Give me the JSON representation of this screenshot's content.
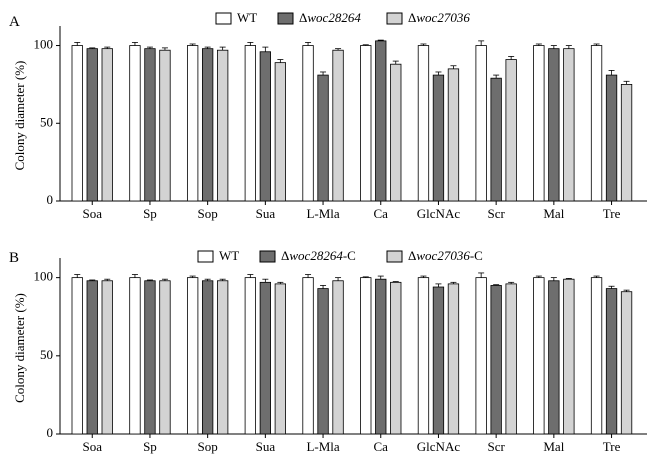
{
  "chart_data": [
    {
      "type": "bar",
      "panel_label": "A",
      "ylabel": "Colony diameter (%)",
      "ylim": [
        0,
        110
      ],
      "yticks": [
        0,
        50,
        100
      ],
      "categories": [
        "Soa",
        "Sp",
        "Sop",
        "Sua",
        "L-Mla",
        "Ca",
        "GlcNAc",
        "Scr",
        "Mal",
        "Tre"
      ],
      "legend_position": "top-center",
      "series": [
        {
          "name": "WT",
          "prefix": "",
          "suffix": "",
          "color": "#ffffff",
          "values": [
            100,
            100,
            100,
            100,
            100,
            100,
            100,
            100,
            100,
            100
          ],
          "errors": [
            2,
            2,
            1,
            2,
            2,
            0.5,
            1,
            3,
            1,
            1
          ]
        },
        {
          "name": "woc28264",
          "prefix": "Δ",
          "suffix": "",
          "color": "#6e6e6e",
          "values": [
            98,
            98,
            98,
            96,
            81,
            103,
            81,
            79,
            98,
            81
          ],
          "errors": [
            0.5,
            1,
            1,
            3,
            2,
            0.5,
            2,
            2,
            2,
            3
          ]
        },
        {
          "name": "woc27036",
          "prefix": "Δ",
          "suffix": "",
          "color": "#d3d3d3",
          "values": [
            98,
            97,
            97,
            89,
            97,
            88,
            85,
            91,
            98,
            75
          ],
          "errors": [
            1,
            1.5,
            2,
            2,
            1,
            2,
            2,
            2,
            2,
            2
          ]
        }
      ]
    },
    {
      "type": "bar",
      "panel_label": "B",
      "ylabel": "Colony diameter (%)",
      "ylim": [
        0,
        110
      ],
      "yticks": [
        0,
        50,
        100
      ],
      "categories": [
        "Soa",
        "Sp",
        "Sop",
        "Sua",
        "L-Mla",
        "Ca",
        "GlcNAc",
        "Scr",
        "Mal",
        "Tre"
      ],
      "legend_position": "top-center",
      "series": [
        {
          "name": "WT",
          "prefix": "",
          "suffix": "",
          "color": "#ffffff",
          "values": [
            100,
            100,
            100,
            100,
            100,
            100,
            100,
            100,
            100,
            100
          ],
          "errors": [
            2,
            2,
            1,
            2,
            2,
            0.5,
            1,
            3,
            1,
            1
          ]
        },
        {
          "name": "woc28264",
          "prefix": "Δ",
          "suffix": "-C",
          "color": "#6e6e6e",
          "values": [
            98,
            98,
            98,
            97,
            93,
            99,
            94,
            95,
            98,
            93
          ],
          "errors": [
            0.5,
            0.5,
            1,
            2,
            2,
            2,
            2,
            0.5,
            2,
            1.5
          ]
        },
        {
          "name": "woc27036",
          "prefix": "Δ",
          "suffix": "-C",
          "color": "#d3d3d3",
          "values": [
            98,
            98,
            98,
            96,
            98,
            97,
            96,
            96,
            99,
            91
          ],
          "errors": [
            1,
            1,
            1,
            1,
            2,
            0.5,
            1,
            1,
            0.5,
            1
          ]
        }
      ]
    }
  ]
}
